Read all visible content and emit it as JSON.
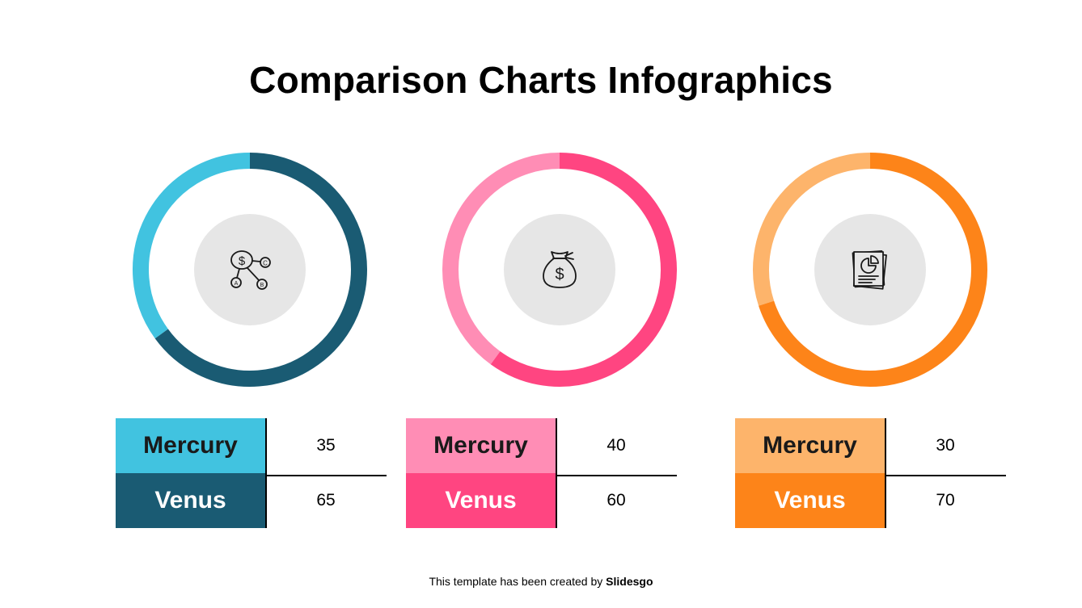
{
  "title": "Comparison Charts Infographics",
  "footer": {
    "prefix": "This template has been created by",
    "brand": "Slidesgo"
  },
  "chart_data": [
    {
      "type": "pie",
      "categories": [
        "Mercury",
        "Venus"
      ],
      "values": [
        35,
        65
      ],
      "colors": [
        "#41c3e0",
        "#1a5b73"
      ],
      "icon": "money-network-icon"
    },
    {
      "type": "pie",
      "categories": [
        "Mercury",
        "Venus"
      ],
      "values": [
        40,
        60
      ],
      "colors": [
        "#ff8db5",
        "#ff4581"
      ],
      "icon": "money-bag-icon"
    },
    {
      "type": "pie",
      "categories": [
        "Mercury",
        "Venus"
      ],
      "values": [
        30,
        70
      ],
      "colors": [
        "#fdb46b",
        "#fd8419"
      ],
      "icon": "documents-chart-icon"
    }
  ]
}
